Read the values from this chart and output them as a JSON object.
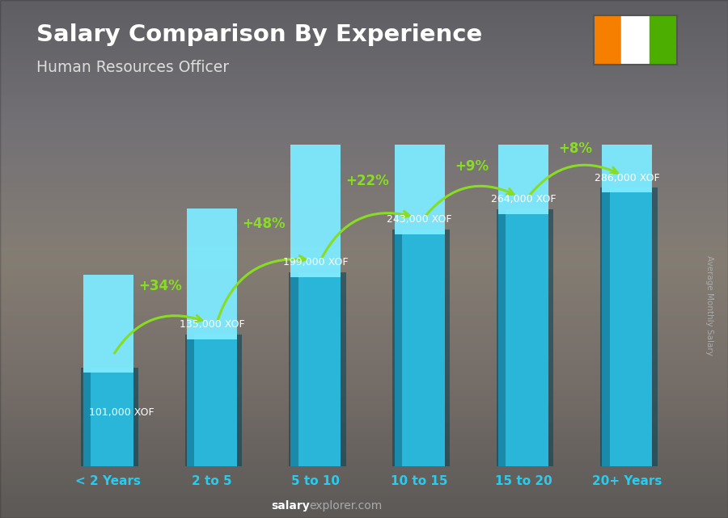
{
  "title": "Salary Comparison By Experience",
  "subtitle": "Human Resources Officer",
  "categories": [
    "< 2 Years",
    "2 to 5",
    "5 to 10",
    "10 to 15",
    "15 to 20",
    "20+ Years"
  ],
  "values": [
    101000,
    135000,
    199000,
    243000,
    264000,
    286000
  ],
  "labels": [
    "101,000 XOF",
    "135,000 XOF",
    "199,000 XOF",
    "243,000 XOF",
    "264,000 XOF",
    "286,000 XOF"
  ],
  "pct_labels": [
    "+34%",
    "+48%",
    "+22%",
    "+9%",
    "+8%"
  ],
  "bar_face_color": "#29b6d8",
  "bar_left_color": "#1a8aaa",
  "bar_top_color": "#55d8f0",
  "bar_top_cap_color": "#7eeaff",
  "pct_color": "#88dd22",
  "label_color": "#ffffff",
  "cat_color": "#29ccee",
  "title_color": "#ffffff",
  "subtitle_color": "#dddddd",
  "ylabel": "Average Monthly Salary",
  "watermark_bold": "salary",
  "watermark_normal": "explorer.com",
  "ylim": [
    0,
    330000
  ],
  "flag_colors": [
    "#F77F00",
    "#FFFFFF",
    "#4CAF00"
  ]
}
